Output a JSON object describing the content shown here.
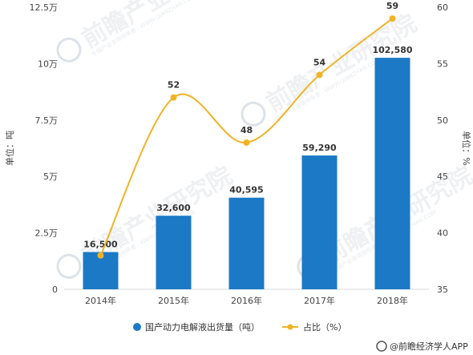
{
  "chart_data": {
    "type": "bar",
    "categories": [
      "2014年",
      "2015年",
      "2016年",
      "2017年",
      "2018年"
    ],
    "series": [
      {
        "name": "国产动力电解液出货量（吨）",
        "type": "bar",
        "axis": "left",
        "values": [
          16500,
          32600,
          40595,
          59290,
          102580
        ],
        "labels": [
          "16,500",
          "32,600",
          "40,595",
          "59,290",
          "102,580"
        ],
        "color": "#1b79c6"
      },
      {
        "name": "占比（%）",
        "type": "line",
        "axis": "right",
        "values": [
          38,
          52,
          48,
          54,
          59
        ],
        "labels": [
          "",
          "52",
          "48",
          "54",
          "59"
        ],
        "color": "#f0b326"
      }
    ],
    "left_axis": {
      "label": "单位：吨",
      "ylim": [
        0,
        125000
      ],
      "ticks": [
        {
          "value": 0,
          "label": "0"
        },
        {
          "value": 25000,
          "label": "2.5万"
        },
        {
          "value": 50000,
          "label": "5万"
        },
        {
          "value": 75000,
          "label": "7.5万"
        },
        {
          "value": 100000,
          "label": "10万"
        },
        {
          "value": 125000,
          "label": "12.5万"
        }
      ]
    },
    "right_axis": {
      "label": "单位：%",
      "ylim": [
        35,
        60
      ],
      "ticks": [
        {
          "value": 35,
          "label": "35"
        },
        {
          "value": 40,
          "label": "40"
        },
        {
          "value": 45,
          "label": "45"
        },
        {
          "value": 50,
          "label": "50"
        },
        {
          "value": 55,
          "label": "55"
        },
        {
          "value": 60,
          "label": "60"
        }
      ]
    },
    "legend_position": "bottom",
    "grid": false
  },
  "watermark": {
    "text": "前瞻产业研究院",
    "subtext": "中国产业咨询领导者 · WWW.QIANZHAN.COM"
  },
  "footer": {
    "source": "@前瞻经济学人APP"
  }
}
